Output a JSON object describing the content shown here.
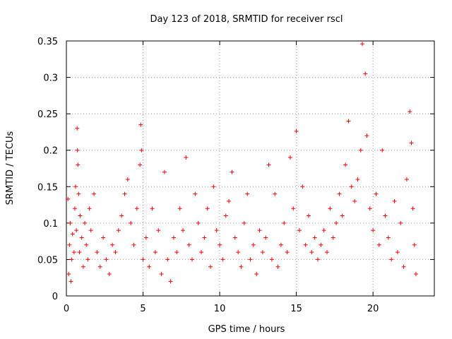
{
  "chart_data": {
    "type": "scatter",
    "title": "Day 123 of 2018, SRMTID for receiver rscl",
    "xlabel": "GPS time / hours",
    "ylabel": "SRMTID / TECUs",
    "xlim": [
      0,
      24
    ],
    "ylim": [
      0,
      0.35
    ],
    "xticks": [
      0,
      5,
      10,
      15,
      20
    ],
    "xtick_labels": [
      "0",
      "5",
      "10",
      "15",
      "20"
    ],
    "yticks": [
      0,
      0.05,
      0.1,
      0.15,
      0.2,
      0.25,
      0.3,
      0.35
    ],
    "ytick_labels": [
      "0",
      "0.05",
      "0.1",
      "0.15",
      "0.2",
      "0.25",
      "0.3",
      "0.35"
    ],
    "grid": true,
    "marker": "+",
    "color": "#ff0000",
    "series": [
      {
        "name": "rscl",
        "points": [
          [
            0.1,
            0.133
          ],
          [
            0.15,
            0.03
          ],
          [
            0.2,
            0.07
          ],
          [
            0.25,
            0.1
          ],
          [
            0.3,
            0.02
          ],
          [
            0.35,
            0.05
          ],
          [
            0.4,
            0.085
          ],
          [
            0.5,
            0.06
          ],
          [
            0.55,
            0.12
          ],
          [
            0.6,
            0.15
          ],
          [
            0.65,
            0.09
          ],
          [
            0.7,
            0.23
          ],
          [
            0.72,
            0.2
          ],
          [
            0.75,
            0.18
          ],
          [
            0.8,
            0.14
          ],
          [
            0.85,
            0.06
          ],
          [
            0.9,
            0.11
          ],
          [
            1.0,
            0.08
          ],
          [
            1.1,
            0.04
          ],
          [
            1.2,
            0.1
          ],
          [
            1.3,
            0.07
          ],
          [
            1.4,
            0.05
          ],
          [
            1.5,
            0.12
          ],
          [
            1.6,
            0.09
          ],
          [
            1.8,
            0.14
          ],
          [
            2.0,
            0.06
          ],
          [
            2.2,
            0.04
          ],
          [
            2.4,
            0.08
          ],
          [
            2.6,
            0.05
          ],
          [
            2.8,
            0.03
          ],
          [
            3.0,
            0.07
          ],
          [
            3.2,
            0.06
          ],
          [
            3.4,
            0.09
          ],
          [
            3.6,
            0.11
          ],
          [
            3.8,
            0.14
          ],
          [
            4.0,
            0.16
          ],
          [
            4.2,
            0.1
          ],
          [
            4.4,
            0.07
          ],
          [
            4.6,
            0.12
          ],
          [
            4.8,
            0.18
          ],
          [
            4.85,
            0.235
          ],
          [
            4.9,
            0.2
          ],
          [
            5.0,
            0.05
          ],
          [
            5.2,
            0.08
          ],
          [
            5.4,
            0.04
          ],
          [
            5.6,
            0.12
          ],
          [
            5.8,
            0.06
          ],
          [
            6.0,
            0.09
          ],
          [
            6.2,
            0.03
          ],
          [
            6.4,
            0.17
          ],
          [
            6.6,
            0.05
          ],
          [
            6.8,
            0.02
          ],
          [
            7.0,
            0.08
          ],
          [
            7.2,
            0.06
          ],
          [
            7.4,
            0.12
          ],
          [
            7.6,
            0.09
          ],
          [
            7.8,
            0.19
          ],
          [
            8.0,
            0.07
          ],
          [
            8.2,
            0.05
          ],
          [
            8.4,
            0.14
          ],
          [
            8.6,
            0.1
          ],
          [
            8.8,
            0.06
          ],
          [
            9.0,
            0.08
          ],
          [
            9.2,
            0.12
          ],
          [
            9.4,
            0.04
          ],
          [
            9.6,
            0.15
          ],
          [
            9.8,
            0.09
          ],
          [
            10.0,
            0.07
          ],
          [
            10.2,
            0.05
          ],
          [
            10.4,
            0.11
          ],
          [
            10.6,
            0.13
          ],
          [
            10.8,
            0.17
          ],
          [
            11.0,
            0.08
          ],
          [
            11.2,
            0.06
          ],
          [
            11.4,
            0.04
          ],
          [
            11.6,
            0.1
          ],
          [
            11.8,
            0.14
          ],
          [
            12.0,
            0.05
          ],
          [
            12.2,
            0.07
          ],
          [
            12.4,
            0.03
          ],
          [
            12.6,
            0.09
          ],
          [
            12.8,
            0.06
          ],
          [
            13.0,
            0.08
          ],
          [
            13.2,
            0.18
          ],
          [
            13.4,
            0.05
          ],
          [
            13.6,
            0.14
          ],
          [
            13.8,
            0.04
          ],
          [
            14.0,
            0.07
          ],
          [
            14.2,
            0.1
          ],
          [
            14.4,
            0.06
          ],
          [
            14.6,
            0.19
          ],
          [
            14.8,
            0.12
          ],
          [
            15.0,
            0.226
          ],
          [
            15.2,
            0.09
          ],
          [
            15.4,
            0.15
          ],
          [
            15.6,
            0.07
          ],
          [
            15.8,
            0.11
          ],
          [
            16.0,
            0.06
          ],
          [
            16.2,
            0.08
          ],
          [
            16.4,
            0.05
          ],
          [
            16.6,
            0.07
          ],
          [
            16.8,
            0.09
          ],
          [
            17.0,
            0.06
          ],
          [
            17.2,
            0.12
          ],
          [
            17.4,
            0.08
          ],
          [
            17.6,
            0.1
          ],
          [
            17.8,
            0.14
          ],
          [
            18.0,
            0.11
          ],
          [
            18.2,
            0.18
          ],
          [
            18.4,
            0.24
          ],
          [
            18.6,
            0.15
          ],
          [
            18.8,
            0.13
          ],
          [
            19.0,
            0.16
          ],
          [
            19.2,
            0.2
          ],
          [
            19.3,
            0.346
          ],
          [
            19.5,
            0.305
          ],
          [
            19.6,
            0.22
          ],
          [
            19.8,
            0.12
          ],
          [
            20.0,
            0.09
          ],
          [
            20.2,
            0.14
          ],
          [
            20.4,
            0.07
          ],
          [
            20.6,
            0.2
          ],
          [
            20.8,
            0.11
          ],
          [
            21.0,
            0.08
          ],
          [
            21.2,
            0.05
          ],
          [
            21.4,
            0.13
          ],
          [
            21.6,
            0.06
          ],
          [
            21.8,
            0.1
          ],
          [
            22.0,
            0.04
          ],
          [
            22.2,
            0.16
          ],
          [
            22.4,
            0.253
          ],
          [
            22.5,
            0.21
          ],
          [
            22.6,
            0.12
          ],
          [
            22.7,
            0.07
          ],
          [
            22.8,
            0.03
          ]
        ]
      }
    ]
  }
}
